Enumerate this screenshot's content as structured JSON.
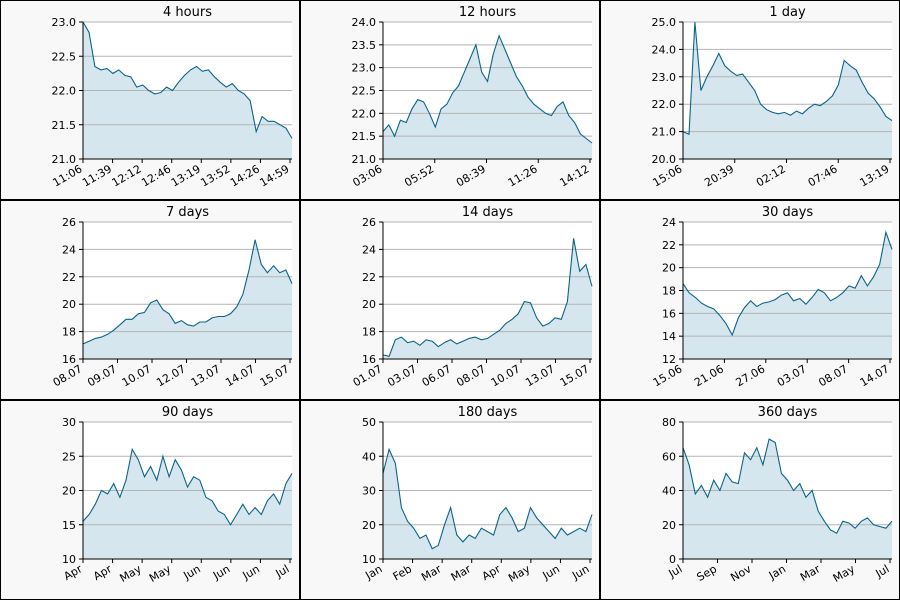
{
  "colors": {
    "line": "#0b6487",
    "fill": "#d6e6ee",
    "grid": "#b4b4b4",
    "plot_bg": "#ffffff",
    "panel_bg": "#f8f8f8",
    "border": "#000000"
  },
  "chart_data": [
    {
      "type": "area",
      "title": "4 hours",
      "ylim": [
        21.0,
        23.0
      ],
      "yticks": [
        "21.0",
        "21.5",
        "22.0",
        "22.5",
        "23.0"
      ],
      "xticks": [
        "11:06",
        "11:39",
        "12:12",
        "12:46",
        "13:19",
        "13:52",
        "14:26",
        "14:59"
      ],
      "grid": "horizontal",
      "series": [
        {
          "values": [
            23.0,
            22.85,
            22.35,
            22.3,
            22.32,
            22.25,
            22.3,
            22.22,
            22.2,
            22.05,
            22.08,
            22.0,
            21.95,
            21.97,
            22.05,
            22.0,
            22.12,
            22.22,
            22.3,
            22.35,
            22.28,
            22.3,
            22.2,
            22.12,
            22.05,
            22.1,
            22.0,
            21.95,
            21.85,
            21.4,
            21.62,
            21.55,
            21.55,
            21.5,
            21.45,
            21.3
          ]
        }
      ]
    },
    {
      "type": "area",
      "title": "12 hours",
      "ylim": [
        21.0,
        24.0
      ],
      "yticks": [
        "21.0",
        "21.5",
        "22.0",
        "22.5",
        "23.0",
        "23.5",
        "24.0"
      ],
      "xticks": [
        "03:06",
        "05:52",
        "08:39",
        "11:26",
        "14:12"
      ],
      "grid": "horizontal",
      "series": [
        {
          "values": [
            21.6,
            21.75,
            21.5,
            21.85,
            21.8,
            22.1,
            22.3,
            22.25,
            22.0,
            21.7,
            22.1,
            22.2,
            22.45,
            22.6,
            22.9,
            23.2,
            23.5,
            22.9,
            22.7,
            23.3,
            23.7,
            23.4,
            23.1,
            22.8,
            22.6,
            22.35,
            22.2,
            22.1,
            22.0,
            21.95,
            22.15,
            22.25,
            21.95,
            21.8,
            21.55,
            21.45,
            21.35
          ]
        }
      ]
    },
    {
      "type": "area",
      "title": "1 day",
      "ylim": [
        20.0,
        25.0
      ],
      "yticks": [
        "20.0",
        "21.0",
        "22.0",
        "23.0",
        "24.0",
        "25.0"
      ],
      "xticks": [
        "15:06",
        "20:39",
        "02:12",
        "07:46",
        "13:19"
      ],
      "grid": "horizontal",
      "series": [
        {
          "values": [
            21.0,
            20.9,
            25.0,
            22.5,
            23.0,
            23.4,
            23.85,
            23.4,
            23.2,
            23.05,
            23.1,
            22.8,
            22.5,
            22.0,
            21.8,
            21.7,
            21.65,
            21.7,
            21.6,
            21.75,
            21.65,
            21.85,
            22.0,
            21.95,
            22.1,
            22.3,
            22.7,
            23.6,
            23.4,
            23.25,
            22.8,
            22.4,
            22.2,
            21.9,
            21.55,
            21.4
          ]
        }
      ]
    },
    {
      "type": "area",
      "title": "7 days",
      "ylim": [
        16,
        26
      ],
      "yticks": [
        "16",
        "18",
        "20",
        "22",
        "24",
        "26"
      ],
      "xticks": [
        "08.07",
        "09.07",
        "10.07",
        "12.07",
        "13.07",
        "14.07",
        "15.07"
      ],
      "grid": "horizontal",
      "series": [
        {
          "values": [
            17.1,
            17.3,
            17.5,
            17.6,
            17.8,
            18.1,
            18.5,
            18.9,
            18.9,
            19.3,
            19.4,
            20.1,
            20.3,
            19.6,
            19.3,
            18.6,
            18.8,
            18.5,
            18.4,
            18.7,
            18.7,
            19.0,
            19.1,
            19.1,
            19.3,
            19.8,
            20.7,
            22.5,
            24.7,
            22.9,
            22.3,
            22.8,
            22.3,
            22.5,
            21.5
          ]
        }
      ]
    },
    {
      "type": "area",
      "title": "14 days",
      "ylim": [
        16,
        26
      ],
      "yticks": [
        "16",
        "18",
        "20",
        "22",
        "24",
        "26"
      ],
      "xticks": [
        "01.07",
        "03.07",
        "06.07",
        "08.07",
        "10.07",
        "13.07",
        "15.07"
      ],
      "grid": "horizontal",
      "series": [
        {
          "values": [
            16.3,
            16.2,
            17.4,
            17.6,
            17.2,
            17.3,
            17.0,
            17.4,
            17.3,
            16.9,
            17.2,
            17.4,
            17.1,
            17.3,
            17.5,
            17.6,
            17.4,
            17.5,
            17.8,
            18.1,
            18.6,
            18.9,
            19.3,
            20.2,
            20.1,
            19.0,
            18.4,
            18.6,
            19.0,
            18.9,
            20.2,
            24.8,
            22.4,
            22.9,
            21.3
          ]
        }
      ]
    },
    {
      "type": "area",
      "title": "30 days",
      "ylim": [
        12,
        24
      ],
      "yticks": [
        "12",
        "14",
        "16",
        "18",
        "20",
        "22",
        "24"
      ],
      "xticks": [
        "15.06",
        "21.06",
        "27.06",
        "03.07",
        "08.07",
        "14.07"
      ],
      "grid": "horizontal",
      "series": [
        {
          "values": [
            18.6,
            17.8,
            17.4,
            16.9,
            16.6,
            16.4,
            15.8,
            15.1,
            14.1,
            15.6,
            16.5,
            17.1,
            16.6,
            16.9,
            17.0,
            17.2,
            17.6,
            17.8,
            17.1,
            17.3,
            16.8,
            17.4,
            18.1,
            17.8,
            17.1,
            17.4,
            17.8,
            18.4,
            18.2,
            19.3,
            18.4,
            19.2,
            20.3,
            23.1,
            21.6
          ]
        }
      ]
    },
    {
      "type": "area",
      "title": "90 days",
      "ylim": [
        10,
        30
      ],
      "yticks": [
        "10",
        "15",
        "20",
        "25",
        "30"
      ],
      "xticks": [
        "Apr",
        "Apr",
        "May",
        "May",
        "Jun",
        "Jun",
        "Jun",
        "Jul"
      ],
      "grid": "horizontal",
      "series": [
        {
          "values": [
            15.5,
            16.5,
            18.0,
            20.0,
            19.5,
            21.0,
            19.0,
            21.5,
            26.0,
            24.5,
            22.0,
            23.5,
            21.5,
            25.0,
            22.0,
            24.5,
            23.0,
            20.5,
            22.0,
            21.5,
            19.0,
            18.5,
            17.0,
            16.5,
            15.0,
            16.5,
            18.0,
            16.5,
            17.5,
            16.5,
            18.5,
            19.5,
            18.0,
            21.0,
            22.5
          ]
        }
      ]
    },
    {
      "type": "area",
      "title": "180 days",
      "ylim": [
        10,
        50
      ],
      "yticks": [
        "10",
        "20",
        "30",
        "40",
        "50"
      ],
      "xticks": [
        "Jan",
        "Feb",
        "Mar",
        "Mar",
        "Apr",
        "May",
        "Jun",
        "Jun"
      ],
      "grid": "horizontal",
      "series": [
        {
          "values": [
            35.0,
            42.0,
            38.0,
            25.0,
            21.0,
            19.0,
            16.0,
            17.0,
            13.0,
            14.0,
            20.0,
            25.0,
            17.0,
            15.0,
            17.0,
            16.0,
            19.0,
            18.0,
            17.0,
            23.0,
            25.0,
            22.0,
            18.0,
            19.0,
            25.0,
            22.0,
            20.0,
            18.0,
            16.0,
            19.0,
            17.0,
            18.0,
            19.0,
            18.0,
            23.0
          ]
        }
      ]
    },
    {
      "type": "area",
      "title": "360 days",
      "ylim": [
        0,
        80
      ],
      "yticks": [
        "0",
        "20",
        "40",
        "60",
        "80"
      ],
      "xticks": [
        "Jul",
        "Sep",
        "Nov",
        "Jan",
        "Mar",
        "May",
        "Jul"
      ],
      "grid": "horizontal",
      "series": [
        {
          "values": [
            65.0,
            55.0,
            38.0,
            43.0,
            36.0,
            46.0,
            40.0,
            50.0,
            45.0,
            44.0,
            62.0,
            58.0,
            65.0,
            55.0,
            70.0,
            68.0,
            50.0,
            46.0,
            40.0,
            44.0,
            36.0,
            40.0,
            28.0,
            22.0,
            17.0,
            15.0,
            22.0,
            21.0,
            18.0,
            22.0,
            24.0,
            20.0,
            19.0,
            18.0,
            22.0
          ]
        }
      ]
    }
  ]
}
